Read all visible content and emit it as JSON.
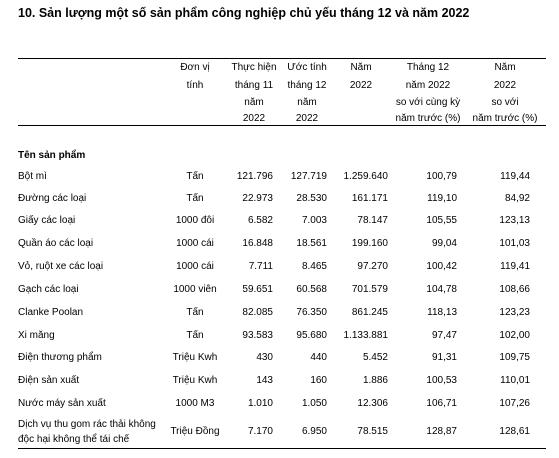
{
  "title": "10. Sản lượng một số sản phẩm công nghiệp chủ yếu tháng 12 và năm 2022",
  "table": {
    "header": [
      [
        "Đơn vị",
        "tính"
      ],
      [
        "Thực hiện",
        "tháng 11",
        "năm",
        "2022"
      ],
      [
        "Ước tính",
        "tháng 12",
        "năm",
        "2022"
      ],
      [
        "Năm",
        "2022"
      ],
      [
        "Tháng 12",
        "năm  2022",
        "so với cùng kỳ",
        "năm trước (%)"
      ],
      [
        "Năm",
        "2022",
        "so với",
        "năm trước (%)"
      ]
    ],
    "section": "Tên sản phẩm",
    "rows": [
      {
        "name": [
          "Bột mì"
        ],
        "unit": "Tấn",
        "values": [
          "121.796",
          "127.719",
          "1.259.640",
          "100,79",
          "119,44"
        ]
      },
      {
        "name": [
          "Đường các loại"
        ],
        "unit": "Tấn",
        "values": [
          "22.973",
          "28.530",
          "161.171",
          "119,10",
          "84,92"
        ]
      },
      {
        "name": [
          "Giấy các loại"
        ],
        "unit": "1000 đôi",
        "values": [
          "6.582",
          "7.003",
          "78.147",
          "105,55",
          "123,13"
        ]
      },
      {
        "name": [
          "Quần áo các loại"
        ],
        "unit": "1000 cái",
        "values": [
          "16.848",
          "18.561",
          "199.160",
          "99,04",
          "101,03"
        ]
      },
      {
        "name": [
          "Vỏ, ruột xe các loại"
        ],
        "unit": "1000 cái",
        "values": [
          "7.711",
          "8.465",
          "97.270",
          "100,42",
          "119,41"
        ]
      },
      {
        "name": [
          "Gạch các loại"
        ],
        "unit": "1000 viên",
        "values": [
          "59.651",
          "60.568",
          "701.579",
          "104,78",
          "108,66"
        ]
      },
      {
        "name": [
          "Clanke Poolan"
        ],
        "unit": "Tấn",
        "values": [
          "82.085",
          "76.350",
          "861.245",
          "118,13",
          "123,23"
        ]
      },
      {
        "name": [
          "Xi măng"
        ],
        "unit": "Tấn",
        "values": [
          "93.583",
          "95.680",
          "1.133.881",
          "97,47",
          "102,00"
        ]
      },
      {
        "name": [
          "Điện thương phẩm"
        ],
        "unit": "Triệu Kwh",
        "values": [
          "430",
          "440",
          "5.452",
          "91,31",
          "109,75"
        ]
      },
      {
        "name": [
          "Điện sản xuất"
        ],
        "unit": "Triệu Kwh",
        "values": [
          "143",
          "160",
          "1.886",
          "100,53",
          "110,01"
        ]
      },
      {
        "name": [
          "Nước máy sản xuất"
        ],
        "unit": "1000 M3",
        "values": [
          "1.010",
          "1.050",
          "12.306",
          "106,71",
          "107,26"
        ]
      },
      {
        "name": [
          "Dịch vụ thu gom rác thải không",
          "độc hại không thể tái chế"
        ],
        "unit": "Triệu Đồng",
        "values": [
          "7.170",
          "6.950",
          "78.515",
          "128,87",
          "128,61"
        ]
      }
    ]
  }
}
